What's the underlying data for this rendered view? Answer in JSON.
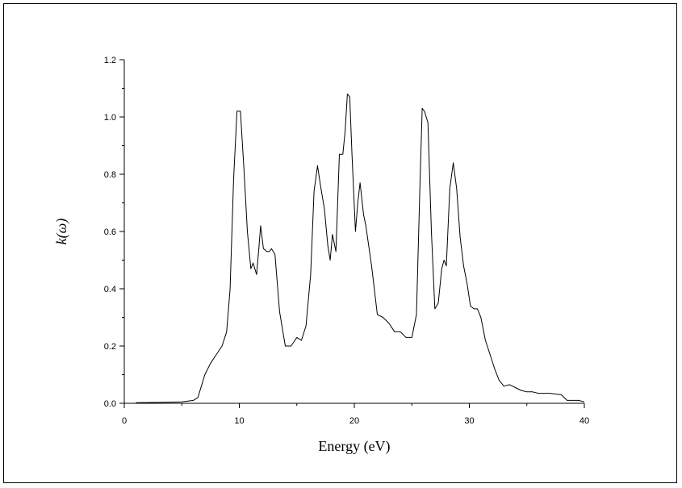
{
  "chart_data": {
    "type": "line",
    "title": "",
    "xlabel": "Energy (eV)",
    "ylabel": "k(ω)",
    "xlim": [
      0,
      40
    ],
    "ylim": [
      0,
      1.2
    ],
    "xticks": [
      0,
      10,
      20,
      30,
      40
    ],
    "xtick_labels": [
      "0",
      "10",
      "20",
      "30",
      "40"
    ],
    "yticks": [
      0.0,
      0.2,
      0.4,
      0.6,
      0.8,
      1.0,
      1.2
    ],
    "ytick_labels": [
      "0.0",
      "0.2",
      "0.4",
      "0.6",
      "0.8",
      "1.0",
      "1.2"
    ],
    "grid": false,
    "legend": "none",
    "line_color": "#000000",
    "series": [
      {
        "x": [
          1.0,
          3.0,
          5.0,
          6.0,
          6.4,
          6.7,
          7.0,
          7.5,
          8.0,
          8.5,
          8.9,
          9.2,
          9.5,
          9.8,
          10.1,
          10.4,
          10.7,
          11.0,
          11.2,
          11.5,
          11.7,
          11.85,
          12.1,
          12.4,
          12.6,
          12.8,
          13.1,
          13.5,
          14.0,
          14.5,
          15.0,
          15.4,
          15.8,
          16.2,
          16.5,
          16.8,
          17.1,
          17.4,
          17.7,
          17.9,
          18.1,
          18.4,
          18.7,
          19.0,
          19.2,
          19.4,
          19.6,
          19.8,
          20.1,
          20.3,
          20.5,
          20.8,
          21.0,
          21.5,
          22.0,
          22.5,
          23.0,
          23.5,
          24.0,
          24.5,
          25.0,
          25.4,
          25.7,
          25.9,
          26.1,
          26.4,
          26.7,
          27.0,
          27.3,
          27.6,
          27.8,
          28.0,
          28.3,
          28.6,
          28.9,
          29.2,
          29.5,
          29.8,
          30.1,
          30.4,
          30.7,
          31.0,
          31.4,
          31.8,
          32.2,
          32.6,
          33.0,
          33.5,
          34.0,
          34.5,
          35.0,
          35.5,
          36.0,
          37.0,
          38.0,
          38.5,
          39.0,
          39.5,
          40.0
        ],
        "y": [
          0.002,
          0.003,
          0.005,
          0.01,
          0.02,
          0.06,
          0.1,
          0.14,
          0.17,
          0.2,
          0.25,
          0.4,
          0.78,
          1.02,
          1.02,
          0.82,
          0.6,
          0.47,
          0.49,
          0.45,
          0.54,
          0.62,
          0.54,
          0.53,
          0.53,
          0.54,
          0.52,
          0.32,
          0.2,
          0.2,
          0.23,
          0.22,
          0.27,
          0.45,
          0.74,
          0.83,
          0.75,
          0.68,
          0.55,
          0.5,
          0.59,
          0.53,
          0.87,
          0.87,
          0.95,
          1.08,
          1.07,
          0.87,
          0.6,
          0.7,
          0.77,
          0.66,
          0.62,
          0.48,
          0.31,
          0.3,
          0.28,
          0.25,
          0.25,
          0.23,
          0.23,
          0.31,
          0.75,
          1.03,
          1.02,
          0.98,
          0.6,
          0.33,
          0.35,
          0.47,
          0.5,
          0.48,
          0.75,
          0.84,
          0.75,
          0.58,
          0.48,
          0.42,
          0.34,
          0.33,
          0.33,
          0.3,
          0.22,
          0.17,
          0.12,
          0.08,
          0.06,
          0.065,
          0.055,
          0.045,
          0.04,
          0.04,
          0.035,
          0.035,
          0.03,
          0.01,
          0.01,
          0.01,
          0.005
        ]
      }
    ]
  }
}
